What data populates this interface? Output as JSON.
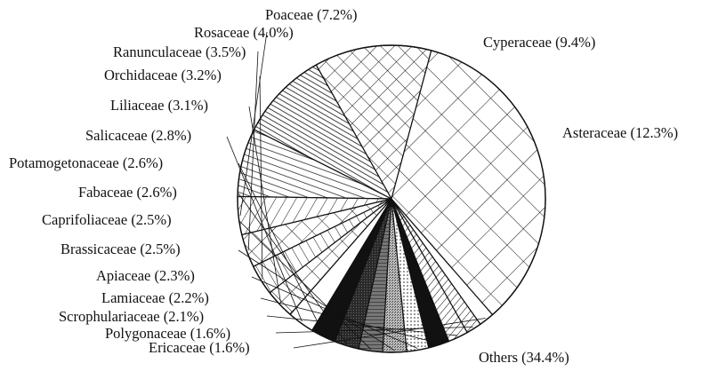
{
  "chart_data": {
    "type": "pie",
    "title": "",
    "slices": [
      {
        "label": "Asteraceae (12.3%)",
        "value": 12.3,
        "pattern": "crosshatch-diagonal"
      },
      {
        "label": "Cyperaceae (9.4%)",
        "value": 9.4,
        "pattern": "diag-dense"
      },
      {
        "label": "Poaceae (7.2%)",
        "value": 7.2,
        "pattern": "diag-wide"
      },
      {
        "label": "Rosaceae (4.0%)",
        "value": 4.0,
        "pattern": "hatch-back"
      },
      {
        "label": "Ranunculaceae (3.5%)",
        "value": 3.5,
        "pattern": "grid"
      },
      {
        "label": "Orchidaceae (3.2%)",
        "value": 3.2,
        "pattern": "diag-fwd"
      },
      {
        "label": "Liliaceae (3.1%)",
        "value": 3.1,
        "pattern": "grid"
      },
      {
        "label": "Salicaceae (2.8%)",
        "value": 2.8,
        "pattern": "white"
      },
      {
        "label": "Potamogetonaceae (2.6%)",
        "value": 2.6,
        "pattern": "black"
      },
      {
        "label": "Fabaceae (2.6%)",
        "value": 2.6,
        "pattern": "dark-gray"
      },
      {
        "label": "Caprifoliaceae (2.5%)",
        "value": 2.5,
        "pattern": "hlines-gray"
      },
      {
        "label": "Brassicaceae (2.5%)",
        "value": 2.5,
        "pattern": "stipple"
      },
      {
        "label": "Apiaceae (2.3%)",
        "value": 2.3,
        "pattern": "dots"
      },
      {
        "label": "Lamiaceae (2.2%)",
        "value": 2.2,
        "pattern": "black"
      },
      {
        "label": "Scrophulariaceae (2.1%)",
        "value": 2.1,
        "pattern": "diag-back"
      },
      {
        "label": "Polygonaceae (1.6%)",
        "value": 1.6,
        "pattern": "diag-back"
      },
      {
        "label": "Ericaceae (1.6%)",
        "value": 1.6,
        "pattern": "white"
      },
      {
        "label": "Others (34.4%)",
        "value": 34.4,
        "pattern": "crosshatch-large"
      }
    ],
    "start_angle_deg": 75,
    "direction": "counterclockwise",
    "colors": {
      "stroke": "#111111",
      "black": "#111111",
      "dark_gray": "#3a3a3a",
      "gray": "#888888",
      "white": "#ffffff"
    }
  }
}
